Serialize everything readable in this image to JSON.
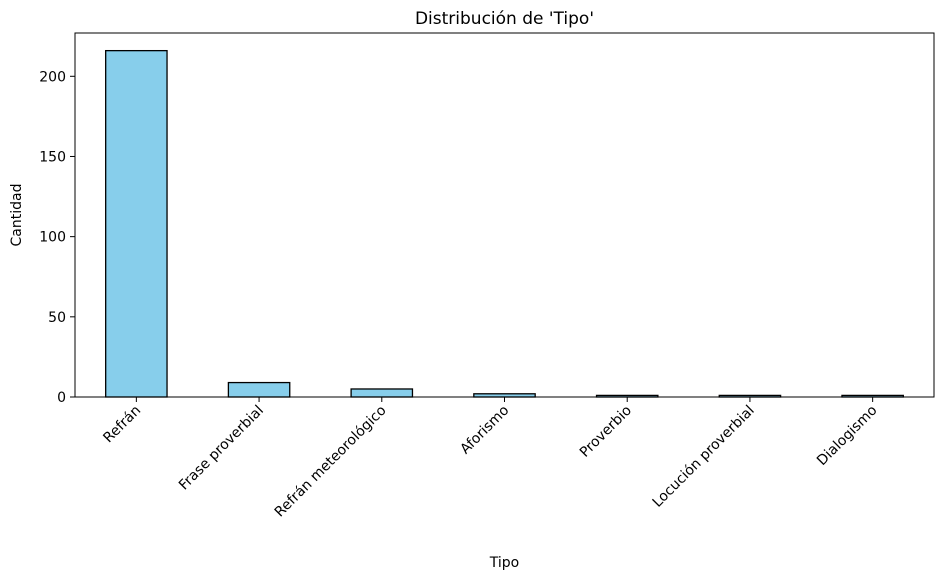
{
  "chart_data": {
    "type": "bar",
    "title": "Distribución de 'Tipo'",
    "xlabel": "Tipo",
    "ylabel": "Cantidad",
    "categories": [
      "Refrán",
      "Frase proverbial",
      "Refrán meteorológico",
      "Aforismo",
      "Proverbio",
      "Locución proverbial",
      "Dialogismo"
    ],
    "values": [
      216,
      9,
      5,
      2,
      1,
      1,
      1
    ],
    "ylim": [
      0,
      227
    ],
    "yticks": [
      0,
      50,
      100,
      150,
      200
    ],
    "grid": false,
    "legend": "none",
    "bar_color": "#87CEEB",
    "edge_color": "#000000"
  }
}
